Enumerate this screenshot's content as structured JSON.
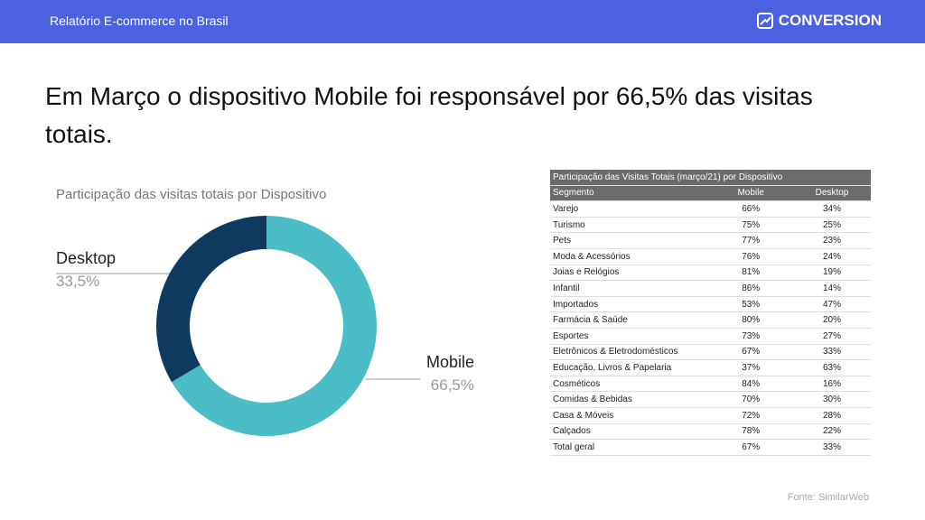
{
  "header": {
    "title": "Relatório E-commerce no Brasil",
    "brand": "CONVERSION"
  },
  "headline": "Em Março o dispositivo Mobile foi responsável por 66,5% das visitas totais.",
  "chart_data": {
    "type": "pie",
    "title": "Participação das visitas totais por Dispositivo",
    "categories": [
      "Mobile",
      "Desktop"
    ],
    "values": [
      66.5,
      33.5
    ],
    "value_labels": [
      "66,5%",
      "33,5%"
    ],
    "colors": [
      "#4bbdc7",
      "#0e3a5f"
    ]
  },
  "table": {
    "title": "Participação das Visitas Totais (março/21) por Dispositivo",
    "columns": [
      "Segmento",
      "Mobile",
      "Desktop"
    ],
    "rows": [
      [
        "Varejo",
        "66%",
        "34%"
      ],
      [
        "Turismo",
        "75%",
        "25%"
      ],
      [
        "Pets",
        "77%",
        "23%"
      ],
      [
        "Moda & Acessórios",
        "76%",
        "24%"
      ],
      [
        "Joias e Relógios",
        "81%",
        "19%"
      ],
      [
        "Infantil",
        "86%",
        "14%"
      ],
      [
        "Importados",
        "53%",
        "47%"
      ],
      [
        "Farmácia & Saúde",
        "80%",
        "20%"
      ],
      [
        "Esportes",
        "73%",
        "27%"
      ],
      [
        "Eletrônicos & Eletrodomésticos",
        "67%",
        "33%"
      ],
      [
        "Educação, Livros & Papelaria",
        "37%",
        "63%"
      ],
      [
        "Cosméticos",
        "84%",
        "16%"
      ],
      [
        "Comidas & Bebidas",
        "70%",
        "30%"
      ],
      [
        "Casa & Móveis",
        "72%",
        "28%"
      ],
      [
        "Calçados",
        "78%",
        "22%"
      ],
      [
        "Total geral",
        "67%",
        "33%"
      ]
    ]
  },
  "footer": {
    "source": "Fonte: SimilarWeb"
  }
}
